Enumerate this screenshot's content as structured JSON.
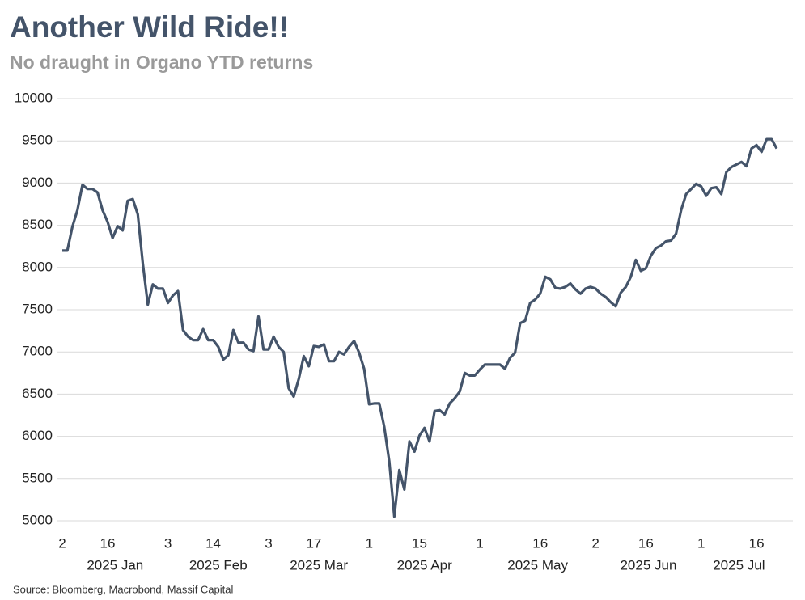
{
  "chart_data": {
    "type": "line",
    "title": "Another Wild Ride!!",
    "subtitle": "No draught in Organo YTD returns",
    "source": "Source: Bloomberg, Macrobond, Massif Capital",
    "categories": [
      "2",
      null,
      null,
      null,
      null,
      null,
      null,
      null,
      null,
      "16",
      null,
      null,
      null,
      null,
      null,
      null,
      null,
      null,
      null,
      null,
      null,
      "3",
      null,
      null,
      null,
      null,
      null,
      null,
      null,
      null,
      "14",
      null,
      null,
      null,
      null,
      null,
      null,
      null,
      null,
      null,
      null,
      "3",
      null,
      null,
      null,
      null,
      null,
      null,
      null,
      null,
      "17",
      null,
      null,
      null,
      null,
      null,
      null,
      null,
      null,
      null,
      null,
      "1",
      null,
      null,
      null,
      null,
      null,
      null,
      null,
      null,
      null,
      "15",
      null,
      null,
      null,
      null,
      null,
      null,
      null,
      null,
      null,
      null,
      null,
      "1",
      null,
      null,
      null,
      null,
      null,
      null,
      null,
      null,
      null,
      null,
      null,
      "16",
      null,
      null,
      null,
      null,
      null,
      null,
      null,
      null,
      null,
      null,
      "2",
      null,
      null,
      null,
      null,
      null,
      null,
      null,
      null,
      null,
      "16",
      null,
      null,
      null,
      null,
      null,
      null,
      null,
      null,
      null,
      null,
      "1",
      null,
      null,
      null,
      null,
      null,
      null,
      null,
      null,
      null,
      null,
      "16",
      null,
      null,
      null,
      null
    ],
    "months": [
      "2025 Jan",
      "2025 Feb",
      "2025 Mar",
      "2025 Apr",
      "2025 May",
      "2025 Jun",
      "2025 Jul"
    ],
    "series": [
      {
        "name": "Organo",
        "color": "#44546a",
        "values": [
          8200,
          8200,
          8480,
          8680,
          8980,
          8930,
          8930,
          8890,
          8680,
          8540,
          8350,
          8490,
          8440,
          8790,
          8810,
          8630,
          8050,
          7560,
          7800,
          7750,
          7750,
          7580,
          7670,
          7720,
          7260,
          7180,
          7140,
          7140,
          7270,
          7140,
          7140,
          7060,
          6910,
          6960,
          7260,
          7110,
          7110,
          7030,
          7010,
          7420,
          7030,
          7030,
          7180,
          7060,
          7000,
          6570,
          6470,
          6680,
          6950,
          6830,
          7070,
          7060,
          7090,
          6890,
          6890,
          7000,
          6970,
          7060,
          7130,
          6990,
          6800,
          6380,
          6390,
          6390,
          6110,
          5700,
          5050,
          5600,
          5370,
          5940,
          5820,
          6010,
          6100,
          5940,
          6300,
          6310,
          6260,
          6390,
          6450,
          6530,
          6750,
          6720,
          6720,
          6790,
          6850,
          6850,
          6850,
          6850,
          6800,
          6930,
          6990,
          7340,
          7370,
          7580,
          7620,
          7690,
          7890,
          7860,
          7760,
          7750,
          7770,
          7810,
          7740,
          7690,
          7750,
          7770,
          7750,
          7690,
          7650,
          7590,
          7540,
          7700,
          7770,
          7890,
          8090,
          7960,
          7990,
          8140,
          8230,
          8260,
          8310,
          8320,
          8400,
          8680,
          8870,
          8930,
          8990,
          8960,
          8850,
          8940,
          8950,
          8870,
          9130,
          9190,
          9220,
          9250,
          9200,
          9410,
          9450,
          9370,
          9520,
          9520,
          9410
        ]
      }
    ],
    "ylim": [
      5000,
      10000
    ],
    "yticks": [
      5000,
      5500,
      6000,
      6500,
      7000,
      7500,
      8000,
      8500,
      9000,
      9500,
      10000
    ],
    "grid": true
  }
}
